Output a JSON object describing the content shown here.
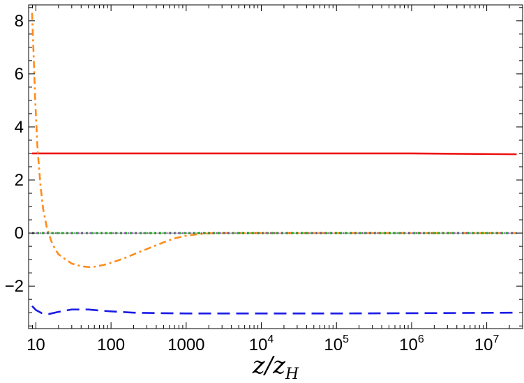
{
  "chart_data": {
    "type": "line",
    "title": "",
    "xlabel": {
      "main": "z/z",
      "sub": "H"
    },
    "ylabel": "",
    "x_scale": "log",
    "xlim": [
      8,
      30000000
    ],
    "ylim": [
      -3.6,
      8.6
    ],
    "grid": false,
    "x_ticks": [
      {
        "value": 10,
        "label": "10"
      },
      {
        "value": 100,
        "label": "100"
      },
      {
        "value": 1000,
        "label": "1000"
      },
      {
        "value": 10000,
        "base": "10",
        "exp": "4"
      },
      {
        "value": 100000,
        "base": "10",
        "exp": "5"
      },
      {
        "value": 1000000,
        "base": "10",
        "exp": "6"
      },
      {
        "value": 10000000,
        "base": "10",
        "exp": "7"
      }
    ],
    "y_ticks": [
      {
        "value": 8,
        "label": "8"
      },
      {
        "value": 6,
        "label": "6"
      },
      {
        "value": 4,
        "label": "4"
      },
      {
        "value": 2,
        "label": "2"
      },
      {
        "value": 0,
        "label": "0"
      },
      {
        "value": -2,
        "label": "−2"
      }
    ],
    "series": [
      {
        "color": "#ee1111",
        "style": "solid",
        "x": [
          8.9,
          100,
          10000,
          1000000,
          25000000
        ],
        "y": [
          3.0,
          3.0,
          3.0,
          3.0,
          2.97
        ]
      },
      {
        "color": "#ff8c1a",
        "style": "dashdot",
        "x": [
          8.9,
          9.3,
          9.8,
          10.5,
          11.5,
          12.5,
          14,
          16,
          18,
          20,
          25,
          30,
          40,
          50,
          60,
          80,
          100,
          150,
          200,
          300,
          500,
          700,
          1000,
          1500,
          2000,
          3000,
          5000,
          10000,
          100000,
          1000000,
          25000000
        ],
        "y": [
          8.3,
          6.8,
          5.0,
          3.2,
          1.8,
          0.9,
          0.2,
          -0.3,
          -0.6,
          -0.8,
          -1.0,
          -1.15,
          -1.25,
          -1.28,
          -1.27,
          -1.2,
          -1.12,
          -0.95,
          -0.8,
          -0.6,
          -0.35,
          -0.2,
          -0.1,
          -0.04,
          -0.01,
          0.0,
          0.0,
          0.0,
          0.0,
          0.0,
          0.0
        ]
      },
      {
        "color": "#1a1ae6",
        "style": "dashed",
        "x": [
          8.9,
          10,
          12,
          15,
          20,
          30,
          50,
          70,
          100,
          200,
          500,
          1000,
          10000,
          100000,
          1000000,
          25000000
        ],
        "y": [
          -2.75,
          -2.9,
          -3.02,
          -3.05,
          -2.97,
          -2.88,
          -2.88,
          -2.92,
          -2.95,
          -3.0,
          -3.02,
          -3.03,
          -3.03,
          -3.03,
          -3.02,
          -3.0
        ]
      },
      {
        "color": "#22aa22",
        "style": "dotted",
        "x": [
          8.9,
          25000000
        ],
        "y": [
          0.0,
          0.0
        ]
      },
      {
        "color": "#7a2da8",
        "style": "dotted-fine",
        "x": [
          8.9,
          25000000
        ],
        "y": [
          0.0,
          0.0
        ]
      }
    ],
    "reference_line": {
      "y": 0,
      "color": "#888888"
    }
  }
}
